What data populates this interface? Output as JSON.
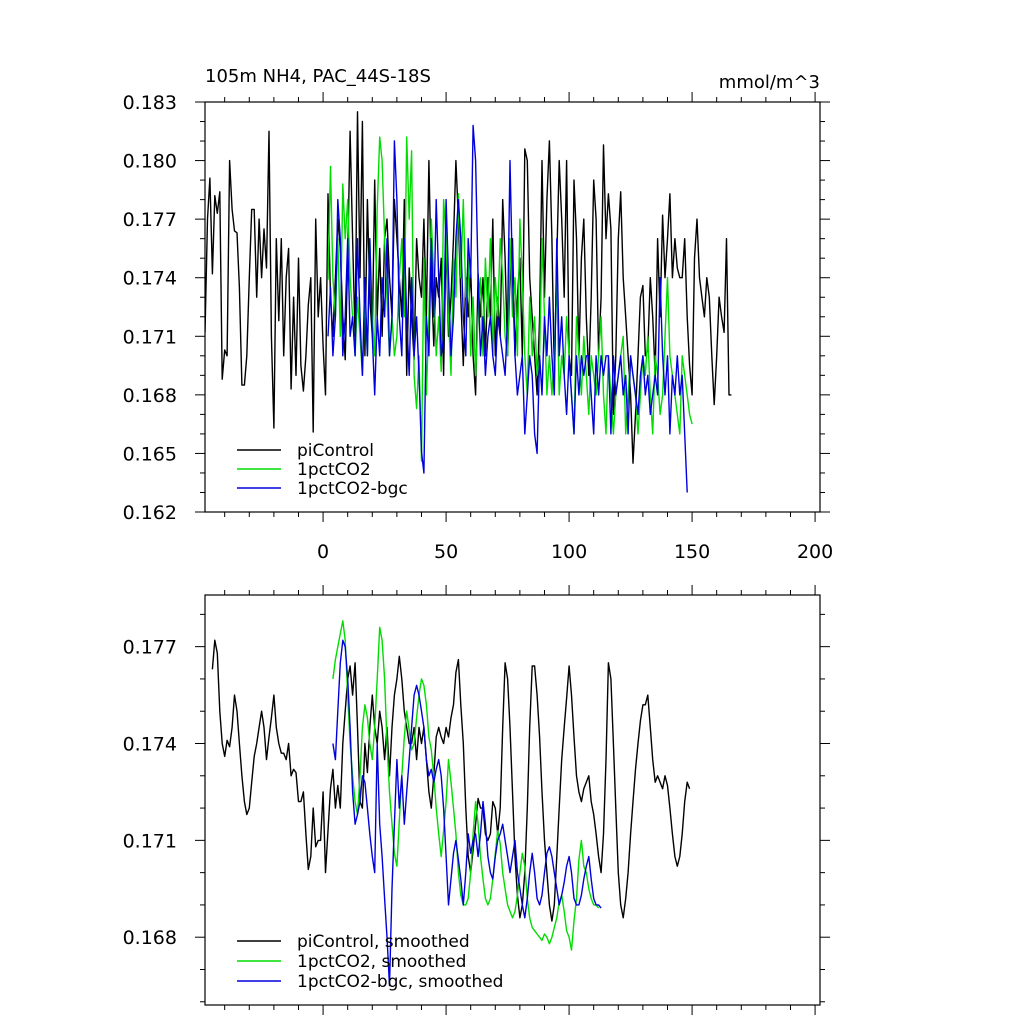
{
  "chart_data": [
    {
      "type": "line",
      "title": "105m NH4, PAC_44S-18S",
      "units": "mmol/m^3",
      "xlim": [
        -48,
        202
      ],
      "ylim": [
        0.162,
        0.183
      ],
      "xticks": [
        0,
        50,
        100,
        150,
        200
      ],
      "xtick_labels": [
        "0",
        "50",
        "100",
        "150",
        "200"
      ],
      "yticks": [
        0.162,
        0.165,
        0.168,
        0.171,
        0.174,
        0.177,
        0.18,
        0.183
      ],
      "ytick_labels": [
        "0.162",
        "0.165",
        "0.168",
        "0.171",
        "0.174",
        "0.177",
        "0.180",
        "0.183"
      ],
      "legend_position": "bottom-left",
      "series": [
        {
          "name": "piControl",
          "color": "#000000",
          "x_start": -48,
          "values": [
            0.1712,
            0.177,
            0.1791,
            0.1742,
            0.1782,
            0.1773,
            0.1784,
            0.1688,
            0.1703,
            0.17,
            0.18,
            0.1775,
            0.1764,
            0.1763,
            0.1735,
            0.1685,
            0.1685,
            0.17,
            0.174,
            0.1775,
            0.1775,
            0.173,
            0.177,
            0.174,
            0.1765,
            0.1745,
            0.1815,
            0.171,
            0.1663,
            0.176,
            0.1718,
            0.176,
            0.17,
            0.174,
            0.1755,
            0.1683,
            0.173,
            0.169,
            0.175,
            0.1695,
            0.1682,
            0.17,
            0.1726,
            0.174,
            0.1661,
            0.177,
            0.172,
            0.174,
            0.1705,
            0.168,
            0.1783,
            0.173,
            0.171,
            0.174,
            0.177,
            0.1755,
            0.172,
            0.1698,
            0.175,
            0.1815,
            0.176,
            0.171,
            0.1825,
            0.174,
            0.182,
            0.17,
            0.178,
            0.173,
            0.171,
            0.179,
            0.172,
            0.1755,
            0.171,
            0.176,
            0.177,
            0.174,
            0.172,
            0.178,
            0.176,
            0.174,
            0.172,
            0.178,
            0.169,
            0.1745,
            0.172,
            0.1698,
            0.176,
            0.174,
            0.173,
            0.177,
            0.172,
            0.18,
            0.174,
            0.1705,
            0.174,
            0.173,
            0.175,
            0.169,
            0.176,
            0.171,
            0.173,
            0.176,
            0.18,
            0.177,
            0.173,
            0.1695,
            0.174,
            0.172,
            0.1745,
            0.17,
            0.168,
            0.1742,
            0.172,
            0.174,
            0.17,
            0.174,
            0.172,
            0.177,
            0.17,
            0.173,
            0.171,
            0.178,
            0.175,
            0.17,
            0.174,
            0.176,
            0.17,
            0.173,
            0.175,
            0.17,
            0.1806,
            0.18,
            0.174,
            0.172,
            0.17,
            0.168,
            0.172,
            0.18,
            0.173,
            0.178,
            0.181,
            0.176,
            0.169,
            0.175,
            0.18,
            0.177,
            0.173,
            0.18,
            0.17,
            0.169,
            0.179,
            0.176,
            0.17,
            0.175,
            0.177,
            0.172,
            0.169,
            0.173,
            0.179,
            0.177,
            0.17,
            0.173,
            0.1808,
            0.176,
            0.1783,
            0.1765,
            0.167,
            0.17,
            0.176,
            0.1784,
            0.174,
            0.172,
            0.17,
            0.168,
            0.1645,
            0.167,
            0.17,
            0.173,
            0.1736,
            0.17,
            0.1703,
            0.174,
            0.172,
            0.169,
            0.176,
            0.172,
            0.1772,
            0.174,
            0.176,
            0.1783,
            0.174,
            0.176,
            0.1745,
            0.174,
            0.174,
            0.176,
            0.172,
            0.1695,
            0.168,
            0.175,
            0.177,
            0.174,
            0.173,
            0.172,
            0.174,
            0.173,
            0.17,
            0.1675,
            0.17,
            0.173,
            0.172,
            0.1712,
            0.176,
            0.168,
            0.168
          ]
        },
        {
          "name": "1pctCO2",
          "color": "#00dd00",
          "x_start": 2,
          "values": [
            0.1739,
            0.1797,
            0.174,
            0.172,
            0.176,
            0.171,
            0.1788,
            0.176,
            0.178,
            0.174,
            0.172,
            0.17,
            0.173,
            0.171,
            0.169,
            0.173,
            0.17,
            0.176,
            0.172,
            0.17,
            0.1775,
            0.1812,
            0.18,
            0.176,
            0.173,
            0.17,
            0.172,
            0.17,
            0.171,
            0.174,
            0.176,
            0.172,
            0.1812,
            0.177,
            0.1805,
            0.169,
            0.1673,
            0.17,
            0.1646,
            0.175,
            0.168,
            0.172,
            0.177,
            0.174,
            0.17,
            0.172,
            0.1692,
            0.178,
            0.176,
            0.172,
            0.169,
            0.175,
            0.173,
            0.1783,
            0.174,
            0.178,
            0.173,
            0.175,
            0.17,
            0.173,
            0.169,
            0.172,
            0.174,
            0.17,
            0.175,
            0.172,
            0.176,
            0.17,
            0.174,
            0.172,
            0.176,
            0.174,
            0.171,
            0.17,
            0.176,
            0.172,
            0.174,
            0.17,
            0.177,
            0.174,
            0.17,
            0.168,
            0.173,
            0.17,
            0.172,
            0.169,
            0.17,
            0.176,
            0.172,
            0.168,
            0.17,
            0.168,
            0.17,
            0.174,
            0.168,
            0.17,
            0.169,
            0.172,
            0.17,
            0.168,
            0.166,
            0.172,
            0.17,
            0.168,
            0.171,
            0.169,
            0.167,
            0.17,
            0.169,
            0.168,
            0.17,
            0.172,
            0.168,
            0.166,
            0.17,
            0.168,
            0.166,
            0.168,
            0.169,
            0.17,
            0.171,
            0.166,
            0.168,
            0.17,
            0.169,
            0.168,
            0.166,
            0.168,
            0.17,
            0.169,
            0.171,
            0.168,
            0.166,
            0.17,
            0.169,
            0.167,
            0.168,
            0.171,
            0.174,
            0.17,
            0.169,
            0.168,
            0.167,
            0.166,
            0.17,
            0.169,
            0.168,
            0.167,
            0.1665
          ]
        },
        {
          "name": "1pctCO2-bgc",
          "color": "#0000dd",
          "x_start": 2,
          "values": [
            0.171,
            0.1735,
            0.17,
            0.172,
            0.178,
            0.176,
            0.17,
            0.172,
            0.176,
            0.171,
            0.172,
            0.17,
            0.176,
            0.172,
            0.169,
            0.174,
            0.17,
            0.176,
            0.171,
            0.168,
            0.172,
            0.17,
            0.174,
            0.172,
            0.176,
            0.17,
            0.172,
            0.181,
            0.178,
            0.172,
            0.17,
            0.176,
            0.172,
            0.169,
            0.174,
            0.17,
            0.172,
            0.169,
            0.1651,
            0.164,
            0.172,
            0.17,
            0.176,
            0.172,
            0.178,
            0.174,
            0.17,
            0.171,
            0.178,
            0.174,
            0.17,
            0.172,
            0.176,
            0.178,
            0.176,
            0.172,
            0.17,
            0.176,
            0.174,
            0.1818,
            0.18,
            0.174,
            0.17,
            0.172,
            0.169,
            0.171,
            0.172,
            0.17,
            0.169,
            0.172,
            0.171,
            0.17,
            0.169,
            0.172,
            0.18,
            0.174,
            0.17,
            0.168,
            0.169,
            0.17,
            0.166,
            0.168,
            0.17,
            0.169,
            0.166,
            0.165,
            0.17,
            0.168,
            0.172,
            0.17,
            0.173,
            0.17,
            0.168,
            0.176,
            0.17,
            0.172,
            0.169,
            0.167,
            0.17,
            0.168,
            0.166,
            0.17,
            0.168,
            0.17,
            0.169,
            0.17,
            0.17,
            0.168,
            0.166,
            0.17,
            0.168,
            0.17,
            0.169,
            0.17,
            0.17,
            0.166,
            0.17,
            0.168,
            0.169,
            0.17,
            0.168,
            0.169,
            0.166,
            0.17,
            0.169,
            0.168,
            0.167,
            0.169,
            0.17,
            0.168,
            0.169,
            0.167,
            0.168,
            0.169,
            0.168,
            0.174,
            0.17,
            0.168,
            0.17,
            0.166,
            0.169,
            0.168,
            0.17,
            0.168,
            0.169,
            0.166,
            0.163
          ]
        }
      ]
    },
    {
      "type": "line",
      "title": "",
      "xlim": [
        -48,
        202
      ],
      "ylim": [
        0.1659,
        0.1786
      ],
      "xticks": [
        0,
        50,
        100,
        150,
        200
      ],
      "yticks": [
        0.168,
        0.171,
        0.174,
        0.177
      ],
      "ytick_labels": [
        "0.168",
        "0.171",
        "0.174",
        "0.177"
      ],
      "legend_position": "bottom-left",
      "series": [
        {
          "name": "piControl, smoothed",
          "color": "#000000",
          "x_start": -45,
          "values": [
            0.1763,
            0.1772,
            0.1768,
            0.175,
            0.174,
            0.1736,
            0.1741,
            0.1739,
            0.1745,
            0.1755,
            0.175,
            0.174,
            0.173,
            0.1722,
            0.1718,
            0.172,
            0.1728,
            0.1736,
            0.174,
            0.1745,
            0.175,
            0.1745,
            0.1735,
            0.1742,
            0.1748,
            0.1755,
            0.1745,
            0.174,
            0.1737,
            0.1737,
            0.1735,
            0.174,
            0.173,
            0.1732,
            0.1731,
            0.1722,
            0.1722,
            0.1725,
            0.1712,
            0.1701,
            0.1705,
            0.172,
            0.1708,
            0.171,
            0.171,
            0.1725,
            0.17,
            0.1713,
            0.1726,
            0.1732,
            0.172,
            0.1727,
            0.172,
            0.174,
            0.175,
            0.176,
            0.1764,
            0.1755,
            0.1765,
            0.1745,
            0.1722,
            0.172,
            0.174,
            0.1731,
            0.1745,
            0.1755,
            0.1745,
            0.174,
            0.175,
            0.1745,
            0.1735,
            0.1745,
            0.173,
            0.1745,
            0.1755,
            0.176,
            0.1767,
            0.176,
            0.175,
            0.1745,
            0.174,
            0.174,
            0.1745,
            0.1735,
            0.1745,
            0.174,
            0.1745,
            0.1735,
            0.1725,
            0.172,
            0.173,
            0.1742,
            0.1745,
            0.1742,
            0.174,
            0.1745,
            0.1742,
            0.1748,
            0.1752,
            0.1762,
            0.1766,
            0.1752,
            0.174,
            0.172,
            0.1705,
            0.17,
            0.1707,
            0.1715,
            0.1723,
            0.172,
            0.172,
            0.1712,
            0.171,
            0.1712,
            0.1722,
            0.172,
            0.1712,
            0.172,
            0.1745,
            0.1765,
            0.176,
            0.1745,
            0.1725,
            0.1705,
            0.1693,
            0.1686,
            0.169,
            0.17,
            0.172,
            0.1745,
            0.1764,
            0.1764,
            0.1755,
            0.1742,
            0.1725,
            0.171,
            0.17,
            0.169,
            0.1685,
            0.169,
            0.1705,
            0.172,
            0.1735,
            0.1745,
            0.1754,
            0.1764,
            0.1755,
            0.1742,
            0.173,
            0.1725,
            0.1722,
            0.1726,
            0.1728,
            0.173,
            0.1722,
            0.1718,
            0.1712,
            0.1705,
            0.17,
            0.1712,
            0.1735,
            0.1765,
            0.176,
            0.174,
            0.172,
            0.17,
            0.169,
            0.1686,
            0.1692,
            0.17,
            0.1712,
            0.1722,
            0.1732,
            0.174,
            0.1747,
            0.1752,
            0.1752,
            0.1755,
            0.1745,
            0.1735,
            0.1728,
            0.173,
            0.1728,
            0.1726,
            0.173,
            0.1727,
            0.172,
            0.1712,
            0.1705,
            0.1702,
            0.1705,
            0.1712,
            0.1722,
            0.1728,
            0.1726
          ]
        },
        {
          "name": "1pctCO2, smoothed",
          "color": "#00dd00",
          "x_start": 4,
          "values": [
            0.176,
            0.1766,
            0.177,
            0.1774,
            0.1778,
            0.1772,
            0.1755,
            0.174,
            0.173,
            0.1722,
            0.1718,
            0.173,
            0.1745,
            0.1752,
            0.1748,
            0.174,
            0.1735,
            0.1745,
            0.176,
            0.1776,
            0.1772,
            0.176,
            0.174,
            0.1725,
            0.1715,
            0.1706,
            0.1702,
            0.1716,
            0.173,
            0.1742,
            0.175,
            0.1744,
            0.1738,
            0.174,
            0.1748,
            0.1755,
            0.176,
            0.1758,
            0.1752,
            0.1742,
            0.1738,
            0.173,
            0.172,
            0.1712,
            0.1705,
            0.1713,
            0.1722,
            0.1735,
            0.1728,
            0.172,
            0.1712,
            0.17,
            0.1693,
            0.169,
            0.169,
            0.1692,
            0.17,
            0.1712,
            0.1722,
            0.1715,
            0.1705,
            0.1698,
            0.1692,
            0.169,
            0.1692,
            0.1698,
            0.1706,
            0.1713,
            0.1709,
            0.17,
            0.1695,
            0.169,
            0.1688,
            0.1686,
            0.1688,
            0.1693,
            0.17,
            0.1706,
            0.1702,
            0.1692,
            0.1686,
            0.1683,
            0.1682,
            0.1681,
            0.168,
            0.1679,
            0.1681,
            0.168,
            0.1678,
            0.168,
            0.1683,
            0.1686,
            0.1691,
            0.1693,
            0.1688,
            0.1682,
            0.168,
            0.1676,
            0.1685,
            0.1692,
            0.1704,
            0.171,
            0.1702,
            0.17,
            0.1695,
            0.1692,
            0.169,
            0.169,
            0.1689
          ]
        },
        {
          "name": "1pctCO2-bgc, smoothed",
          "color": "#0000dd",
          "x_start": 4,
          "values": [
            0.174,
            0.1735,
            0.175,
            0.1765,
            0.1772,
            0.177,
            0.176,
            0.1745,
            0.1725,
            0.1715,
            0.1718,
            0.1722,
            0.173,
            0.1728,
            0.172,
            0.1712,
            0.1705,
            0.17,
            0.174,
            0.1715,
            0.1705,
            0.1692,
            0.168,
            0.1665,
            0.1695,
            0.1715,
            0.1735,
            0.172,
            0.173,
            0.1715,
            0.1725,
            0.1735,
            0.1745,
            0.1755,
            0.1758,
            0.1755,
            0.175,
            0.1745,
            0.1735,
            0.173,
            0.1732,
            0.1728,
            0.1732,
            0.1735,
            0.173,
            0.172,
            0.1705,
            0.169,
            0.1698,
            0.1706,
            0.171,
            0.1704,
            0.1698,
            0.169,
            0.17,
            0.1712,
            0.1706,
            0.171,
            0.1712,
            0.1705,
            0.1712,
            0.1722,
            0.1715,
            0.1705,
            0.17,
            0.1698,
            0.1705,
            0.171,
            0.1712,
            0.1715,
            0.171,
            0.1705,
            0.17,
            0.1705,
            0.171,
            0.17,
            0.1695,
            0.169,
            0.1686,
            0.1692,
            0.17,
            0.1706,
            0.17,
            0.1692,
            0.169,
            0.1693,
            0.17,
            0.1706,
            0.1708,
            0.1705,
            0.17,
            0.1695,
            0.169,
            0.1693,
            0.1697,
            0.1702,
            0.1705,
            0.17,
            0.1692,
            0.169,
            0.169,
            0.1693,
            0.1698,
            0.1702,
            0.1705,
            0.1698,
            0.1692,
            0.169,
            0.169,
            0.1689
          ]
        }
      ]
    }
  ]
}
